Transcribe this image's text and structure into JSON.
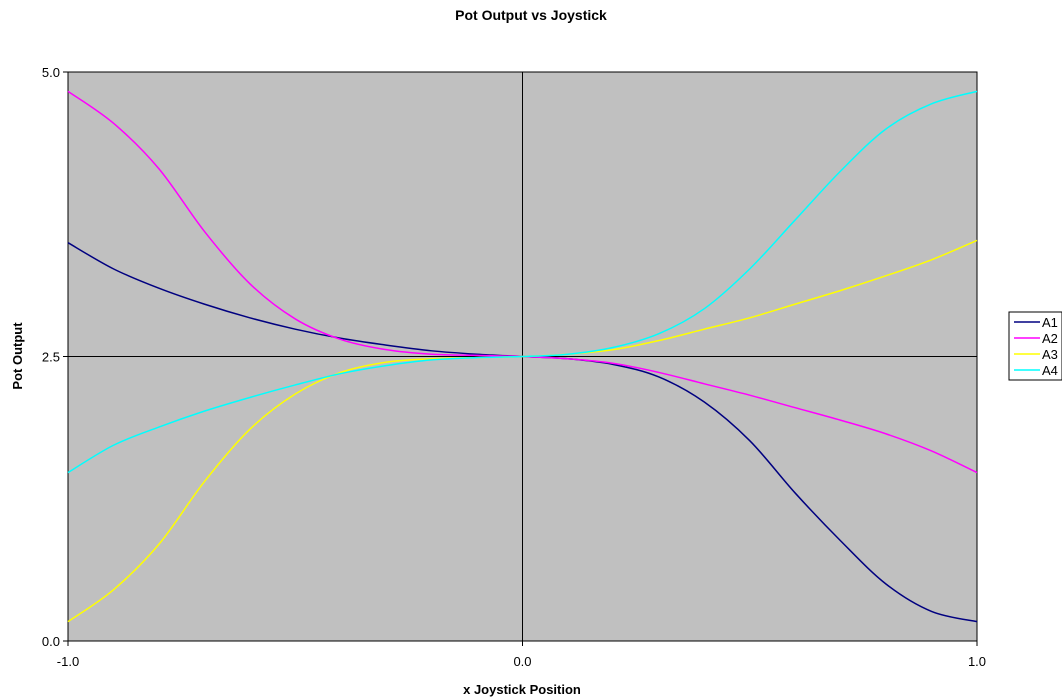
{
  "chart_data": {
    "type": "line",
    "title": "Pot Output vs Joystick",
    "xlabel": "x Joystick Position",
    "ylabel": "Pot Output",
    "xlim": [
      -1.0,
      1.0
    ],
    "ylim": [
      0.0,
      5.0
    ],
    "x_ticks": [
      "-1.0",
      "0.0",
      "1.0"
    ],
    "y_ticks": [
      "0.0",
      "2.5",
      "5.0"
    ],
    "grid": false,
    "legend_position": "right",
    "plot_background": "#c0c0c0",
    "x": [
      -1.0,
      -0.9,
      -0.8,
      -0.7,
      -0.6,
      -0.5,
      -0.4,
      -0.3,
      -0.2,
      -0.1,
      0.0,
      0.1,
      0.2,
      0.3,
      0.4,
      0.5,
      0.6,
      0.7,
      0.8,
      0.9,
      1.0
    ],
    "series": [
      {
        "name": "A1",
        "color": "#000080",
        "values": [
          3.5,
          3.27,
          3.1,
          2.96,
          2.84,
          2.74,
          2.66,
          2.6,
          2.55,
          2.52,
          2.5,
          2.48,
          2.43,
          2.32,
          2.1,
          1.76,
          1.3,
          0.88,
          0.5,
          0.26,
          0.17
        ]
      },
      {
        "name": "A2",
        "color": "#ff00ff",
        "values": [
          4.83,
          4.55,
          4.15,
          3.6,
          3.14,
          2.83,
          2.65,
          2.56,
          2.52,
          2.51,
          2.5,
          2.48,
          2.44,
          2.36,
          2.26,
          2.16,
          2.05,
          1.94,
          1.82,
          1.67,
          1.48
        ]
      },
      {
        "name": "A3",
        "color": "#ffff00",
        "values": [
          0.17,
          0.45,
          0.85,
          1.4,
          1.86,
          2.17,
          2.36,
          2.45,
          2.48,
          2.49,
          2.5,
          2.52,
          2.56,
          2.64,
          2.74,
          2.84,
          2.96,
          3.08,
          3.21,
          3.35,
          3.52
        ]
      },
      {
        "name": "A4",
        "color": "#00ffff",
        "values": [
          1.48,
          1.72,
          1.88,
          2.02,
          2.14,
          2.25,
          2.35,
          2.42,
          2.47,
          2.49,
          2.5,
          2.52,
          2.58,
          2.7,
          2.92,
          3.27,
          3.7,
          4.13,
          4.5,
          4.72,
          4.83
        ]
      }
    ]
  }
}
